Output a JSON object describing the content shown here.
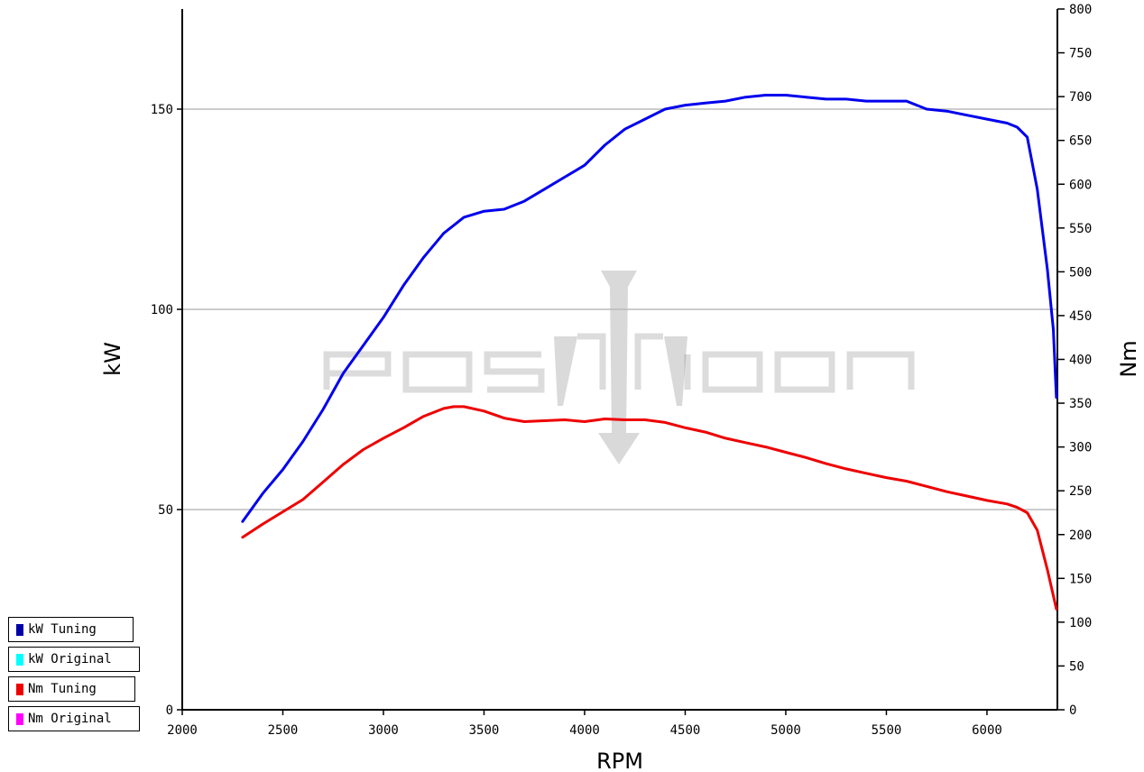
{
  "chart_data": {
    "type": "line",
    "xlabel": "RPM",
    "ylabel_left": "kW",
    "ylabel_right": "Nm",
    "xlim": [
      2000,
      6350
    ],
    "ylim_left": [
      0,
      175
    ],
    "ylim_right": [
      0,
      800
    ],
    "x_ticks": [
      2000,
      2500,
      3000,
      3500,
      4000,
      4500,
      5000,
      5500,
      6000
    ],
    "y_left_ticks": [
      0,
      50,
      100,
      150
    ],
    "y_right_ticks": [
      0,
      50,
      100,
      150,
      200,
      250,
      300,
      350,
      400,
      450,
      500,
      550,
      600,
      650,
      700,
      750,
      800
    ],
    "grid": "horizontal at left-axis ticks",
    "legend_placement": "bottom-left",
    "watermark": "POSEIDON",
    "series": [
      {
        "name": "kW Tuning",
        "axis": "left",
        "color": "#0000ee",
        "x": [
          2300,
          2400,
          2500,
          2600,
          2700,
          2800,
          2900,
          3000,
          3100,
          3200,
          3300,
          3400,
          3500,
          3600,
          3700,
          3800,
          3900,
          4000,
          4100,
          4200,
          4300,
          4400,
          4500,
          4600,
          4700,
          4800,
          4900,
          5000,
          5100,
          5200,
          5300,
          5400,
          5500,
          5600,
          5700,
          5800,
          5900,
          6000,
          6100,
          6150,
          6200,
          6250,
          6300,
          6330,
          6345
        ],
        "values": [
          47,
          54,
          60,
          67,
          75,
          84,
          91,
          98,
          106,
          113,
          119,
          123,
          124.5,
          125,
          127,
          130,
          133,
          136,
          141,
          145,
          147.5,
          150,
          151,
          151.5,
          152,
          153,
          153.5,
          153.5,
          153,
          152.5,
          152.5,
          152,
          152,
          152,
          150,
          149.5,
          148.5,
          147.5,
          146.5,
          145.5,
          143,
          130,
          110,
          95,
          78
        ]
      },
      {
        "name": "kW Original",
        "axis": "left",
        "color": "#00ffff",
        "x": [],
        "values": []
      },
      {
        "name": "Nm Tuning",
        "axis": "right",
        "color": "#ee0000",
        "x": [
          2300,
          2400,
          2500,
          2600,
          2700,
          2800,
          2900,
          3000,
          3100,
          3200,
          3300,
          3350,
          3400,
          3500,
          3600,
          3700,
          3800,
          3900,
          4000,
          4100,
          4200,
          4300,
          4400,
          4500,
          4600,
          4700,
          4800,
          4900,
          5000,
          5100,
          5200,
          5300,
          5400,
          5500,
          5600,
          5700,
          5800,
          5900,
          6000,
          6100,
          6150,
          6200,
          6250,
          6300,
          6345
        ],
        "values": [
          197,
          212,
          226,
          240,
          260,
          280,
          297,
          310,
          322,
          335,
          344,
          346,
          346,
          341,
          333,
          329,
          330,
          331,
          329,
          332,
          331,
          331,
          328,
          322,
          317,
          310,
          305,
          300,
          294,
          288,
          281,
          275,
          270,
          265,
          261,
          255,
          249,
          244,
          239,
          235,
          231,
          225,
          205,
          160,
          115
        ]
      },
      {
        "name": "Nm Original",
        "axis": "right",
        "color": "#ff00ff",
        "x": [],
        "values": []
      }
    ]
  }
}
